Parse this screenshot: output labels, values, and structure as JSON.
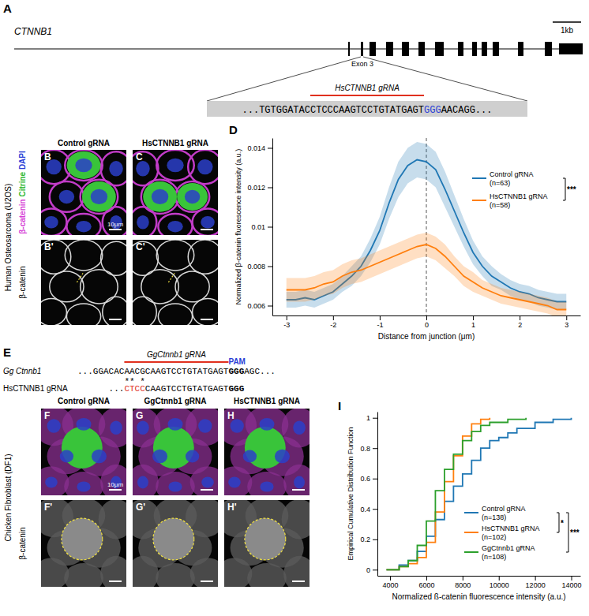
{
  "panel_a": {
    "label": "A",
    "gene": "CTNNB1",
    "scale": "1kb",
    "exon_label": "Exon 3",
    "grna_label": "HsCTNNB1 gRNA",
    "sequence": [
      {
        "text": "...TGTGGATAC",
        "color": "#000000"
      },
      {
        "text": "CTCCCAAGTCCTGTATGAGT",
        "color": "#000000",
        "grna": true
      },
      {
        "text": "GGG",
        "color": "#2b3fd6"
      },
      {
        "text": "AACAGG...",
        "color": "#000000"
      }
    ]
  },
  "panel_bc": {
    "cell_line": "Human Osteosarcoma (U2OS)",
    "channels": [
      {
        "name": "β-catenin",
        "color": "#d63fd6"
      },
      {
        "name": "Citrine",
        "color": "#2fb82f"
      },
      {
        "name": "DAPI",
        "color": "#2b3fd6"
      }
    ],
    "gray_label": "β-catenin",
    "scale_bar": "10μm",
    "columns": [
      {
        "title": "Control gRNA",
        "labels": [
          "B",
          "B'"
        ]
      },
      {
        "title": "HsCTNNB1 gRNA",
        "labels": [
          "C",
          "C'"
        ]
      }
    ]
  },
  "panel_e": {
    "label": "E",
    "grna_label": "GgCtnnb1 gRNA",
    "pam_label": "PAM",
    "mismatch_marks": "** *",
    "rows": [
      {
        "name": "Gg Ctnnb1",
        "segments": [
          {
            "text": "...GGACAC",
            "color": "#000000"
          },
          {
            "text": "AACGCAAGTCCTGTATGAGT",
            "color": "#000000",
            "grna": true
          },
          {
            "text": "GGG",
            "color": "#000000",
            "bold": true,
            "pam": true
          },
          {
            "text": "AGC...",
            "color": "#000000"
          }
        ]
      },
      {
        "name": "HsCTNNB1 gRNA",
        "segments": [
          {
            "text": "...",
            "color": "#000000"
          },
          {
            "text": "CTCC",
            "color": "#e0301e",
            "mismatch": true
          },
          {
            "text": "CAAGTCCTGTATGAGT",
            "color": "#000000"
          },
          {
            "text": "GGG",
            "color": "#000000",
            "bold": true,
            "pam": true
          }
        ]
      }
    ]
  },
  "panel_fh": {
    "cell_line": "Chicken Fibroblast (DF1)",
    "gray_label": "β-catenin",
    "scale_bar": "10μm",
    "columns": [
      {
        "title": "Control gRNA",
        "labels": [
          "F",
          "F'"
        ]
      },
      {
        "title": "GgCtnnb1 gRNA",
        "labels": [
          "G",
          "G'"
        ]
      },
      {
        "title": "HsCTNNB1 gRNA",
        "labels": [
          "H",
          "H'"
        ]
      }
    ]
  },
  "chart_data": [
    {
      "type": "line",
      "label": "D",
      "xlabel": "Distance from junction (μm)",
      "ylabel": "Normalized β-catenin fluorescence intensity (a.u.)",
      "x": [
        -3,
        -2.8,
        -2.6,
        -2.4,
        -2.2,
        -2,
        -1.8,
        -1.6,
        -1.4,
        -1.2,
        -1,
        -0.8,
        -0.6,
        -0.4,
        -0.2,
        0,
        0.2,
        0.4,
        0.6,
        0.8,
        1,
        1.2,
        1.4,
        1.6,
        1.8,
        2,
        2.2,
        2.4,
        2.6,
        2.8,
        3
      ],
      "xlim": [
        -3.3,
        3.3
      ],
      "xticks": [
        -3,
        -2,
        -1,
        0,
        1,
        2,
        3
      ],
      "ylim": [
        0.0055,
        0.0145
      ],
      "yticks": [
        0.006,
        0.008,
        0.01,
        0.012,
        0.014
      ],
      "reference_x": 0,
      "legend": "upper right",
      "series": [
        {
          "name": "Control gRNA",
          "n": "(n=63)",
          "color": "#1f77b4",
          "values": [
            0.0063,
            0.0063,
            0.0064,
            0.0063,
            0.0065,
            0.0067,
            0.0071,
            0.0075,
            0.008,
            0.0088,
            0.0098,
            0.0112,
            0.0124,
            0.0131,
            0.0134,
            0.0133,
            0.0129,
            0.0119,
            0.0108,
            0.0097,
            0.0087,
            0.008,
            0.0075,
            0.0072,
            0.0069,
            0.0067,
            0.0066,
            0.0064,
            0.0063,
            0.0062,
            0.0062
          ],
          "errors": [
            0.0004,
            0.0004,
            0.0004,
            0.0004,
            0.0004,
            0.0004,
            0.0004,
            0.0005,
            0.0005,
            0.0006,
            0.0007,
            0.0008,
            0.0009,
            0.0009,
            0.0009,
            0.0009,
            0.0009,
            0.0009,
            0.0008,
            0.0007,
            0.0006,
            0.0005,
            0.0005,
            0.0004,
            0.0004,
            0.0004,
            0.0004,
            0.0004,
            0.0004,
            0.0004,
            0.0004
          ]
        },
        {
          "name": "HsCTNNB1 gRNA",
          "n": "(n=58)",
          "color": "#ff7f0e",
          "values": [
            0.0068,
            0.0068,
            0.0068,
            0.0069,
            0.0071,
            0.0072,
            0.0075,
            0.0077,
            0.0078,
            0.008,
            0.0082,
            0.0084,
            0.0086,
            0.0088,
            0.009,
            0.0091,
            0.0089,
            0.0085,
            0.008,
            0.0075,
            0.0072,
            0.0069,
            0.0067,
            0.0065,
            0.0064,
            0.0063,
            0.0062,
            0.0061,
            0.006,
            0.0058,
            0.0058
          ],
          "errors": [
            0.0006,
            0.0006,
            0.0006,
            0.0006,
            0.0006,
            0.0006,
            0.0006,
            0.0006,
            0.0006,
            0.0006,
            0.0006,
            0.0006,
            0.0006,
            0.0006,
            0.0006,
            0.0006,
            0.0006,
            0.0006,
            0.0005,
            0.0005,
            0.0005,
            0.0004,
            0.0004,
            0.0004,
            0.0004,
            0.0004,
            0.0004,
            0.0004,
            0.0004,
            0.0004,
            0.0004
          ]
        }
      ],
      "significance": [
        {
          "between": [
            0,
            1
          ],
          "label": "***"
        }
      ]
    },
    {
      "type": "line",
      "line_style": "step",
      "label": "I",
      "xlabel": "Normalized ß-catenin fluorescence intensity (a.u.)",
      "ylabel": "Empirical Cumulative Distribution Function",
      "xlim": [
        3300,
        14500
      ],
      "xticks": [
        4000,
        6000,
        8000,
        10000,
        12000,
        14000
      ],
      "ylim": [
        -0.04,
        1.04
      ],
      "yticks": [
        0,
        0.2,
        0.4,
        0.6,
        0.8,
        1
      ],
      "legend": "lower right",
      "series": [
        {
          "name": "Control gRNA",
          "n": "(n=138)",
          "color": "#1f77b4",
          "x": [
            3800,
            4500,
            5000,
            5500,
            6000,
            6500,
            7000,
            7500,
            8000,
            8500,
            9000,
            9500,
            10000,
            10500,
            11000,
            12000,
            13000,
            14000
          ],
          "values": [
            0,
            0.03,
            0.06,
            0.12,
            0.22,
            0.33,
            0.45,
            0.55,
            0.63,
            0.72,
            0.8,
            0.85,
            0.87,
            0.9,
            0.93,
            0.97,
            0.99,
            1
          ]
        },
        {
          "name": "HsCTNNB1 gRNA",
          "n": "(n=102)",
          "color": "#ff7f0e",
          "x": [
            3800,
            4500,
            5000,
            5500,
            6000,
            6500,
            7000,
            7500,
            8000,
            8500,
            9000,
            9500
          ],
          "values": [
            0,
            0.02,
            0.04,
            0.08,
            0.18,
            0.38,
            0.58,
            0.75,
            0.88,
            0.96,
            0.99,
            1
          ]
        },
        {
          "name": "GgCtnnb1 gRNA",
          "n": "(n=108)",
          "color": "#2ca02c",
          "x": [
            3800,
            4500,
            5000,
            5500,
            6000,
            6500,
            7000,
            7500,
            8000,
            8500,
            9000,
            9500,
            10500,
            11500
          ],
          "values": [
            0,
            0.02,
            0.06,
            0.16,
            0.32,
            0.52,
            0.66,
            0.76,
            0.85,
            0.91,
            0.95,
            0.97,
            0.99,
            1
          ]
        }
      ],
      "significance": [
        {
          "between": [
            0,
            1
          ],
          "label": "*"
        },
        {
          "between": [
            0,
            2
          ],
          "label": "***"
        }
      ]
    }
  ]
}
